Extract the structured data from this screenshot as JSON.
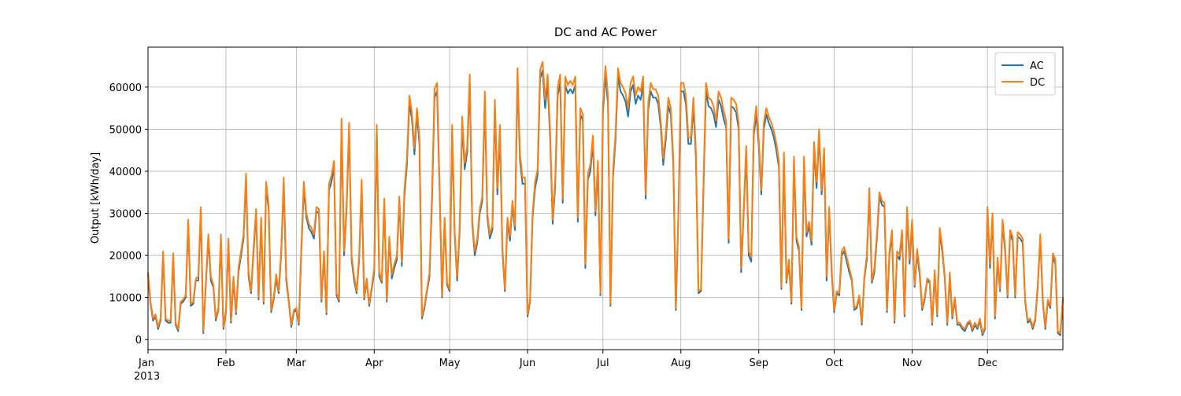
{
  "chart_data": {
    "type": "line",
    "title": "DC and AC Power",
    "ylabel": "Output [kWh/day]",
    "x_year_label": "2013",
    "categories": [
      "Jan",
      null,
      null,
      null,
      null,
      null,
      null,
      null,
      null,
      null,
      null,
      null,
      null,
      null,
      null,
      null,
      null,
      null,
      null,
      null,
      null,
      null,
      null,
      null,
      null,
      null,
      null,
      null,
      null,
      null,
      null,
      "Feb",
      null,
      null,
      null,
      null,
      null,
      null,
      null,
      null,
      null,
      null,
      null,
      null,
      null,
      null,
      null,
      null,
      null,
      null,
      null,
      null,
      null,
      null,
      null,
      null,
      null,
      null,
      null,
      "Mar",
      null,
      null,
      null,
      null,
      null,
      null,
      null,
      null,
      null,
      null,
      null,
      null,
      null,
      null,
      null,
      null,
      null,
      null,
      null,
      null,
      null,
      null,
      null,
      null,
      null,
      null,
      null,
      null,
      null,
      null,
      "Apr",
      null,
      null,
      null,
      null,
      null,
      null,
      null,
      null,
      null,
      null,
      null,
      null,
      null,
      null,
      null,
      null,
      null,
      null,
      null,
      null,
      null,
      null,
      null,
      null,
      null,
      null,
      null,
      null,
      null,
      "May",
      null,
      null,
      null,
      null,
      null,
      null,
      null,
      null,
      null,
      null,
      null,
      null,
      null,
      null,
      null,
      null,
      null,
      null,
      null,
      null,
      null,
      null,
      null,
      null,
      null,
      null,
      null,
      null,
      null,
      null,
      "Jun",
      null,
      null,
      null,
      null,
      null,
      null,
      null,
      null,
      null,
      null,
      null,
      null,
      null,
      null,
      null,
      null,
      null,
      null,
      null,
      null,
      null,
      null,
      null,
      null,
      null,
      null,
      null,
      null,
      null,
      "Jul",
      null,
      null,
      null,
      null,
      null,
      null,
      null,
      null,
      null,
      null,
      null,
      null,
      null,
      null,
      null,
      null,
      null,
      null,
      null,
      null,
      null,
      null,
      null,
      null,
      null,
      null,
      null,
      null,
      null,
      null,
      "Aug",
      null,
      null,
      null,
      null,
      null,
      null,
      null,
      null,
      null,
      null,
      null,
      null,
      null,
      null,
      null,
      null,
      null,
      null,
      null,
      null,
      null,
      null,
      null,
      null,
      null,
      null,
      null,
      null,
      null,
      null,
      "Sep",
      null,
      null,
      null,
      null,
      null,
      null,
      null,
      null,
      null,
      null,
      null,
      null,
      null,
      null,
      null,
      null,
      null,
      null,
      null,
      null,
      null,
      null,
      null,
      null,
      null,
      null,
      null,
      null,
      null,
      "Oct",
      null,
      null,
      null,
      null,
      null,
      null,
      null,
      null,
      null,
      null,
      null,
      null,
      null,
      null,
      null,
      null,
      null,
      null,
      null,
      null,
      null,
      null,
      null,
      null,
      null,
      null,
      null,
      null,
      null,
      null,
      "Nov",
      null,
      null,
      null,
      null,
      null,
      null,
      null,
      null,
      null,
      null,
      null,
      null,
      null,
      null,
      null,
      null,
      null,
      null,
      null,
      null,
      null,
      null,
      null,
      null,
      null,
      null,
      null,
      null,
      null,
      "Dec",
      null,
      null,
      null,
      null,
      null,
      null,
      null,
      null,
      null,
      null,
      null,
      null,
      null,
      null,
      null,
      null,
      null,
      null,
      null,
      null,
      null,
      null,
      null,
      null,
      null,
      null,
      null,
      null,
      null,
      null
    ],
    "series": [
      {
        "name": "AC",
        "color": "#1f77b4",
        "values": [
          15500,
          8500,
          4500,
          5500,
          2500,
          4500,
          20000,
          4500,
          4000,
          4000,
          19500,
          3500,
          2000,
          8500,
          9000,
          10000,
          27500,
          8000,
          8500,
          14000,
          14000,
          30500,
          1500,
          13000,
          24000,
          14000,
          12500,
          4500,
          7000,
          24000,
          2500,
          6500,
          23000,
          4000,
          14000,
          6000,
          16000,
          20000,
          24000,
          38000,
          15000,
          11000,
          21000,
          30000,
          9500,
          28000,
          8500,
          36000,
          31000,
          6500,
          9500,
          14500,
          11000,
          20500,
          37000,
          14000,
          9000,
          3000,
          6500,
          7000,
          3500,
          21000,
          36000,
          29000,
          26500,
          25500,
          24000,
          30500,
          30000,
          9000,
          20000,
          6000,
          35500,
          37500,
          41000,
          10500,
          9000,
          51000,
          20000,
          31000,
          50000,
          19000,
          14000,
          11000,
          19000,
          36500,
          9500,
          14000,
          8000,
          12000,
          16000,
          49500,
          15000,
          13500,
          32500,
          9000,
          23500,
          14500,
          17000,
          19000,
          33000,
          17500,
          34000,
          41500,
          56000,
          52500,
          44000,
          53500,
          46500,
          5000,
          7500,
          11500,
          15000,
          33500,
          57500,
          59000,
          35500,
          10000,
          28000,
          13000,
          11500,
          49500,
          25000,
          14000,
          26000,
          51500,
          40500,
          44500,
          61000,
          27500,
          20000,
          23000,
          30000,
          33000,
          57000,
          29000,
          24000,
          26000,
          55000,
          34500,
          49500,
          21000,
          11500,
          28000,
          23500,
          32000,
          26000,
          62500,
          42500,
          37000,
          37000,
          5500,
          9000,
          29000,
          36000,
          39000,
          62000,
          64000,
          55000,
          61000,
          47500,
          27500,
          36500,
          58000,
          61000,
          32500,
          60500,
          58500,
          59500,
          58500,
          60500,
          28000,
          53500,
          52000,
          17000,
          38000,
          40000,
          47000,
          29500,
          41000,
          10500,
          54000,
          63000,
          56000,
          8000,
          38500,
          47500,
          62500,
          59000,
          58000,
          56500,
          53000,
          59000,
          60500,
          56000,
          58000,
          57000,
          60500,
          33500,
          54500,
          59000,
          57500,
          57500,
          56000,
          50500,
          41500,
          47500,
          55500,
          53500,
          41500,
          7000,
          29000,
          59000,
          59000,
          56000,
          46500,
          46500,
          55500,
          43000,
          11000,
          11500,
          36000,
          59000,
          55500,
          55000,
          53500,
          50500,
          57000,
          55500,
          52500,
          50500,
          23000,
          55500,
          55000,
          54000,
          50000,
          16000,
          30000,
          44500,
          20000,
          18500,
          48500,
          53500,
          46000,
          34500,
          50000,
          53500,
          51500,
          50000,
          48000,
          45000,
          41000,
          12000,
          43000,
          13500,
          18000,
          8500,
          42000,
          23500,
          21000,
          7000,
          42000,
          24500,
          27000,
          22500,
          45500,
          36000,
          48500,
          34500,
          44000,
          14000,
          30500,
          16000,
          6500,
          11000,
          10500,
          20000,
          21000,
          18500,
          16000,
          14000,
          7000,
          7500,
          10000,
          3500,
          14500,
          19000,
          35000,
          13500,
          16000,
          24000,
          34000,
          32000,
          31500,
          6500,
          20000,
          25000,
          4000,
          20000,
          19000,
          25000,
          5500,
          30500,
          18000,
          27500,
          12500,
          20500,
          15500,
          7000,
          9500,
          14000,
          13500,
          3500,
          15500,
          5500,
          25500,
          21000,
          14500,
          3500,
          15000,
          5000,
          9500,
          3500,
          3500,
          2500,
          2000,
          3500,
          4000,
          2000,
          3500,
          2500,
          4500,
          1000,
          2500,
          30500,
          17000,
          29000,
          5000,
          18500,
          11500,
          27500,
          21000,
          10000,
          25000,
          23500,
          10000,
          24500,
          24000,
          23000,
          9000,
          4000,
          4500,
          2500,
          4500,
          12500,
          24000,
          9000,
          2500,
          9000,
          7500,
          19500,
          18000,
          1500,
          1000,
          9500
        ]
      },
      {
        "name": "DC",
        "color": "#ff7f0e",
        "values": [
          16000,
          9000,
          5000,
          6000,
          3000,
          5000,
          21000,
          5000,
          4500,
          4500,
          20500,
          4000,
          2500,
          9000,
          9500,
          10500,
          28500,
          8500,
          9000,
          14500,
          15000,
          31500,
          2000,
          13500,
          25000,
          15000,
          13000,
          5000,
          7500,
          25000,
          3000,
          7000,
          24000,
          4500,
          15000,
          6500,
          17000,
          21000,
          25000,
          39500,
          16000,
          11500,
          22000,
          31000,
          10000,
          29000,
          9000,
          37500,
          32000,
          7000,
          10000,
          15500,
          11500,
          21500,
          38500,
          15000,
          9500,
          3500,
          7000,
          7500,
          4000,
          22000,
          37500,
          30000,
          27500,
          26500,
          25000,
          31500,
          31000,
          9500,
          21000,
          6500,
          37000,
          39000,
          42500,
          11000,
          9500,
          52500,
          21000,
          32000,
          51500,
          20000,
          15000,
          11500,
          20000,
          38000,
          10000,
          14500,
          8500,
          12500,
          17000,
          51000,
          16000,
          14000,
          33500,
          9500,
          24500,
          15500,
          18000,
          20000,
          34000,
          18500,
          35500,
          43000,
          58000,
          54000,
          45500,
          55000,
          48000,
          5500,
          8000,
          12000,
          16000,
          35000,
          59500,
          61000,
          37000,
          10500,
          29000,
          13500,
          12000,
          51000,
          26000,
          15000,
          27000,
          53000,
          42000,
          46000,
          63000,
          28500,
          21000,
          24000,
          31000,
          34000,
          59000,
          30000,
          25000,
          27000,
          57000,
          36000,
          51000,
          22000,
          12000,
          29000,
          24500,
          33000,
          27000,
          64500,
          44000,
          38500,
          38500,
          6000,
          9500,
          30000,
          37500,
          40500,
          64000,
          66000,
          57000,
          63000,
          49000,
          28500,
          38000,
          60000,
          63000,
          33500,
          62500,
          60500,
          61500,
          60500,
          62500,
          29000,
          55000,
          53500,
          18000,
          39500,
          41500,
          48500,
          30500,
          42500,
          11000,
          56000,
          65000,
          58000,
          8500,
          40000,
          49000,
          64500,
          61000,
          60000,
          58500,
          55000,
          61000,
          62500,
          58000,
          60000,
          59000,
          62500,
          34500,
          56000,
          61000,
          59500,
          59500,
          58000,
          52000,
          43000,
          49000,
          57500,
          55000,
          43000,
          7500,
          30000,
          61000,
          61000,
          58000,
          48000,
          48000,
          57500,
          44500,
          11500,
          12000,
          37500,
          61000,
          57500,
          57000,
          55500,
          52000,
          59000,
          57500,
          54500,
          52000,
          24000,
          57500,
          57000,
          56000,
          51500,
          17000,
          31000,
          46000,
          21000,
          19500,
          50000,
          55500,
          47500,
          35500,
          51500,
          55000,
          53000,
          51500,
          49500,
          46500,
          42500,
          12500,
          44500,
          14000,
          19000,
          9000,
          43500,
          24500,
          22000,
          7500,
          43500,
          25500,
          28000,
          23500,
          47000,
          37500,
          50000,
          35500,
          45500,
          15000,
          31500,
          17000,
          7000,
          11500,
          11000,
          21000,
          22000,
          19500,
          17000,
          14500,
          7500,
          8000,
          10500,
          4000,
          15000,
          20000,
          36000,
          14000,
          17000,
          25000,
          35000,
          33000,
          32500,
          7000,
          21000,
          26000,
          4500,
          21000,
          20000,
          26000,
          6000,
          31500,
          19000,
          28500,
          13000,
          21500,
          16500,
          7500,
          10000,
          14500,
          14000,
          4000,
          16500,
          6000,
          26500,
          22000,
          15000,
          4000,
          16000,
          5500,
          10000,
          4000,
          4000,
          3000,
          2500,
          4000,
          4500,
          2500,
          4000,
          3000,
          5000,
          1500,
          3000,
          31500,
          18000,
          30000,
          5500,
          19500,
          12000,
          28500,
          22000,
          10500,
          26000,
          24500,
          10500,
          25500,
          25000,
          24000,
          9500,
          4500,
          5000,
          3000,
          5000,
          13000,
          25000,
          9500,
          3000,
          9500,
          8000,
          20500,
          19000,
          2000,
          1500,
          10000
        ]
      }
    ],
    "ylim": [
      -2400,
      69500
    ],
    "yticks": [
      0,
      10000,
      20000,
      30000,
      40000,
      50000,
      60000
    ],
    "grid": true,
    "legend": "upper right"
  }
}
